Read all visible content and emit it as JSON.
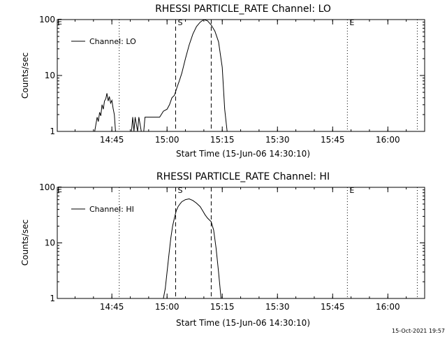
{
  "chart_data": [
    {
      "type": "line",
      "title": "RHESSI PARTICLE_RATE Channel: LO",
      "xlabel": "Start Time (15-Jun-06 14:30:10)",
      "ylabel": "Counts/sec",
      "yscale": "log",
      "ylim": [
        1,
        100
      ],
      "xlim": [
        "14:30:10",
        "16:10:00"
      ],
      "x_tick_labels": [
        "14:45",
        "15:00",
        "15:15",
        "15:30",
        "15:45",
        "16:00"
      ],
      "y_tick_labels": [
        "1",
        "10",
        "100"
      ],
      "grid": false,
      "legend_position": "top-left",
      "series": [
        {
          "name": "Channel: LO",
          "x": [
            "14:40:20",
            "14:41:00",
            "14:41:20",
            "14:41:40",
            "14:42:00",
            "14:42:20",
            "14:42:40",
            "14:43:00",
            "14:43:20",
            "14:43:40",
            "14:44:00",
            "14:44:20",
            "14:44:40",
            "14:45:00",
            "14:45:20",
            "14:45:40",
            "14:46:00",
            "14:46:20",
            "14:47:00",
            "14:47:20",
            "14:48:00",
            "14:49:00",
            "14:50:00",
            "14:50:20",
            "14:50:40",
            "14:51:00",
            "14:51:20",
            "14:52:00",
            "14:52:20",
            "14:53:00",
            "14:53:20",
            "14:53:40",
            "14:54:00",
            "14:54:40",
            "14:55:20",
            "14:55:40",
            "14:56:00",
            "14:56:20",
            "14:57:00",
            "14:58:00",
            "14:59:00",
            "15:00:00",
            "15:00:40",
            "15:01:20",
            "15:02:00",
            "15:02:40",
            "15:03:20",
            "15:04:00",
            "15:05:00",
            "15:06:00",
            "15:07:00",
            "15:08:00",
            "15:09:00",
            "15:10:00",
            "15:11:00",
            "15:12:00",
            "15:13:00",
            "15:14:00",
            "15:15:00",
            "15:15:40",
            "15:16:20"
          ],
          "y": [
            1,
            1.8,
            1.5,
            2.2,
            1.9,
            3.0,
            2.5,
            3.5,
            3.8,
            4.8,
            3.5,
            4.2,
            3.2,
            3.6,
            2.6,
            2.0,
            1.0,
            1.0,
            1.0,
            1.0,
            1.0,
            1.0,
            1.0,
            1.0,
            1.8,
            1.0,
            1.8,
            1.0,
            1.8,
            1.0,
            1.0,
            1.0,
            1.8,
            1.8,
            1.8,
            1.8,
            1.8,
            1.8,
            1.8,
            1.8,
            2.3,
            2.5,
            3.0,
            4.0,
            4.4,
            6.0,
            8.0,
            11,
            20,
            35,
            55,
            75,
            90,
            100,
            95,
            80,
            62,
            40,
            14,
            2.5,
            1
          ]
        }
      ],
      "vertical_lines": [
        {
          "x": "14:47:00",
          "style": "dotted",
          "label": ""
        },
        {
          "x": "15:02:20",
          "style": "dashed",
          "label": "S"
        },
        {
          "x": "15:12:00",
          "style": "dashed",
          "label": ""
        },
        {
          "x": "15:49:00",
          "style": "dotted",
          "label": "E"
        },
        {
          "x": "16:08:00",
          "style": "dotted",
          "label": ""
        }
      ],
      "corner_label": "E"
    },
    {
      "type": "line",
      "title": "RHESSI PARTICLE_RATE Channel: HI",
      "xlabel": "Start Time (15-Jun-06 14:30:10)",
      "ylabel": "Counts/sec",
      "yscale": "log",
      "ylim": [
        1,
        100
      ],
      "xlim": [
        "14:30:10",
        "16:10:00"
      ],
      "x_tick_labels": [
        "14:45",
        "15:00",
        "15:15",
        "15:30",
        "15:45",
        "16:00"
      ],
      "y_tick_labels": [
        "1",
        "10",
        "100"
      ],
      "grid": false,
      "legend_position": "top-left",
      "series": [
        {
          "name": "Channel: HI",
          "x": [
            "14:59:00",
            "14:59:30",
            "15:00:00",
            "15:00:30",
            "15:01:00",
            "15:01:30",
            "15:02:00",
            "15:02:30",
            "15:03:00",
            "15:03:30",
            "15:04:00",
            "15:05:00",
            "15:06:00",
            "15:07:00",
            "15:08:00",
            "15:09:00",
            "15:09:40",
            "15:10:20",
            "15:11:00",
            "15:12:00",
            "15:12:40",
            "15:13:20",
            "15:14:00",
            "15:14:40"
          ],
          "y": [
            1,
            1.5,
            3.0,
            6.0,
            12,
            20,
            28,
            38,
            45,
            50,
            55,
            60,
            62,
            58,
            52,
            45,
            38,
            32,
            28,
            24,
            17,
            8,
            3,
            1
          ]
        }
      ],
      "vertical_lines": [
        {
          "x": "14:47:00",
          "style": "dotted",
          "label": ""
        },
        {
          "x": "15:02:20",
          "style": "dashed",
          "label": "S"
        },
        {
          "x": "15:12:00",
          "style": "dashed",
          "label": ""
        },
        {
          "x": "15:49:00",
          "style": "dotted",
          "label": "E"
        },
        {
          "x": "16:08:00",
          "style": "dotted",
          "label": ""
        }
      ],
      "corner_label": "E"
    }
  ],
  "footer_text": "15-Oct-2021 19:57"
}
